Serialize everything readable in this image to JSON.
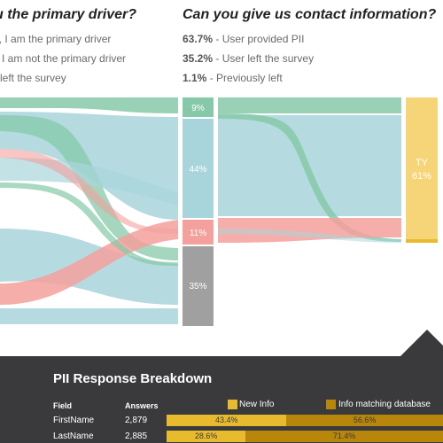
{
  "questions": {
    "left": {
      "title": "u the primary driver?",
      "options": [
        "es, I am the primary driver",
        "lo, I am not the primary driver",
        "er left the survey"
      ]
    },
    "right": {
      "title": "Can you give us contact information?",
      "options": [
        {
          "pct": "63.7%",
          "label": " - User provided PII"
        },
        {
          "pct": "35.2%",
          "label": " - User left the survey"
        },
        {
          "pct": "1.1%",
          "label": " - Previously left"
        }
      ]
    }
  },
  "sankey": {
    "middle_nodes": [
      {
        "label": "9%",
        "value": 9,
        "color": "#86c9a8"
      },
      {
        "label": "44%",
        "value": 44,
        "color": "#a8d5dc"
      },
      {
        "label": "11%",
        "value": 11,
        "color": "#f4a09c"
      },
      {
        "label": "35%",
        "value": 35,
        "color": "#a0a0a0"
      }
    ],
    "right_node": {
      "label": "TY",
      "value_label": "61%",
      "color": "#f6d579"
    },
    "colors": {
      "green": "#86c9a8",
      "teal": "#a8d5dc",
      "red": "#f4a09c",
      "gray": "#a0a0a0",
      "yellow": "#f6d579"
    }
  },
  "panel": {
    "title": "PII Response Breakdown",
    "headers": {
      "field": "Field",
      "answers": "Answers"
    },
    "legend": [
      {
        "label": "New Info",
        "color": "#e8bb2f"
      },
      {
        "label": "Info matching database",
        "color": "#b8860b"
      }
    ],
    "rows": [
      {
        "field": "FirstName",
        "answers": "2,879",
        "new_pct": 43.4,
        "new_label": "43.4%",
        "match_pct": 56.6,
        "match_label": "56.6%"
      },
      {
        "field": "LastName",
        "answers": "2,885",
        "new_pct": 28.6,
        "new_label": "28.6%",
        "match_pct": 71.4,
        "match_label": "71.4%"
      }
    ]
  }
}
